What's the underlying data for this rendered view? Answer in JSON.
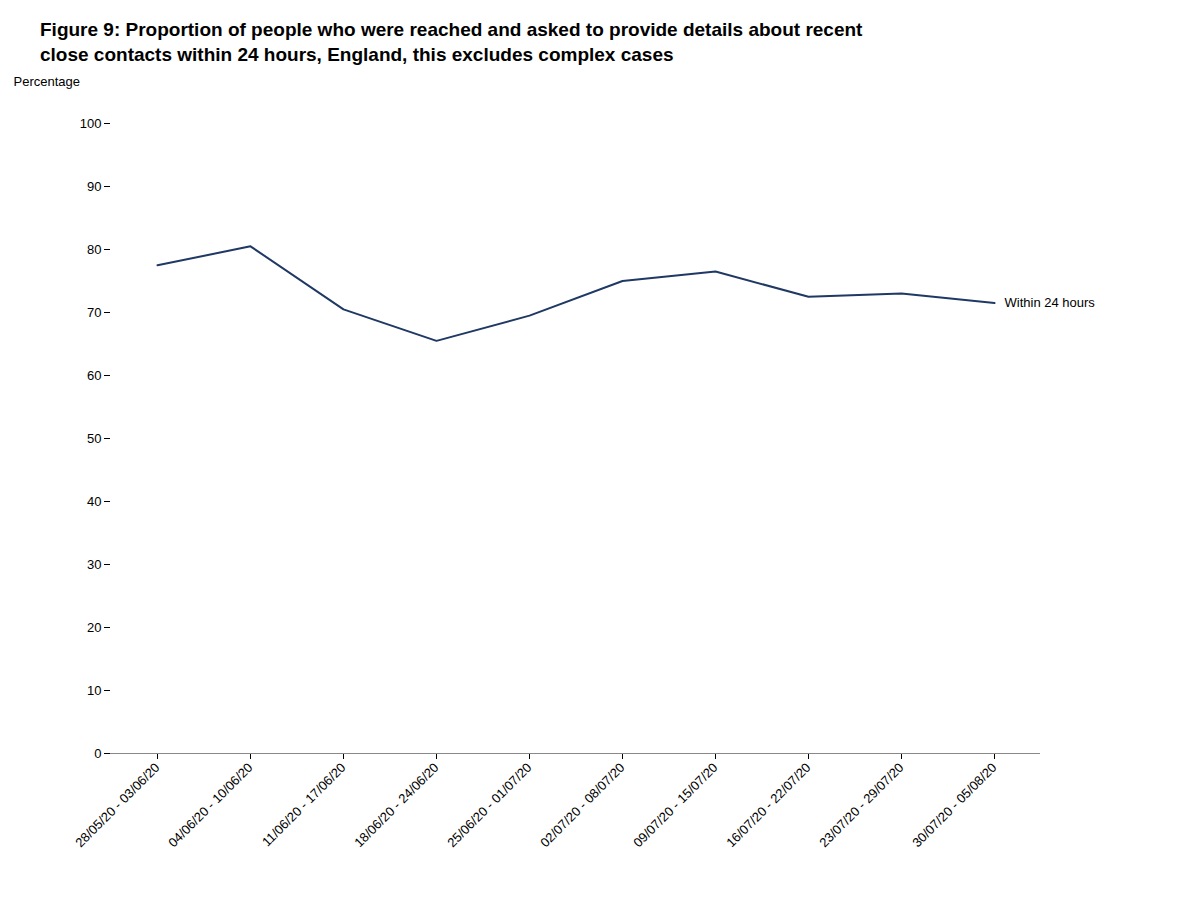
{
  "chart_data": {
    "type": "line",
    "title": "Figure 9: Proportion of people who were reached and asked to provide details about recent\nclose contacts within 24 hours, England, this excludes complex cases",
    "ylabel": "Percentage",
    "categories": [
      "28/05/20 - 03/06/20",
      "04/06/20 - 10/06/20",
      "11/06/20 - 17/06/20",
      "18/06/20 - 24/06/20",
      "25/06/20 - 01/07/20",
      "02/07/20 - 08/07/20",
      "09/07/20 - 15/07/20",
      "16/07/20 - 22/07/20",
      "23/07/20 - 29/07/20",
      "30/07/20 - 05/08/20"
    ],
    "series": [
      {
        "name": "Within 24 hours",
        "color": "#1f3864",
        "values": [
          77.5,
          80.5,
          70.5,
          65.5,
          69.5,
          75.0,
          76.5,
          72.5,
          73.0,
          71.5
        ]
      }
    ],
    "ylim": [
      0,
      100
    ],
    "yticks": [
      0,
      10,
      20,
      30,
      40,
      50,
      60,
      70,
      80,
      90,
      100
    ],
    "grid": false
  }
}
